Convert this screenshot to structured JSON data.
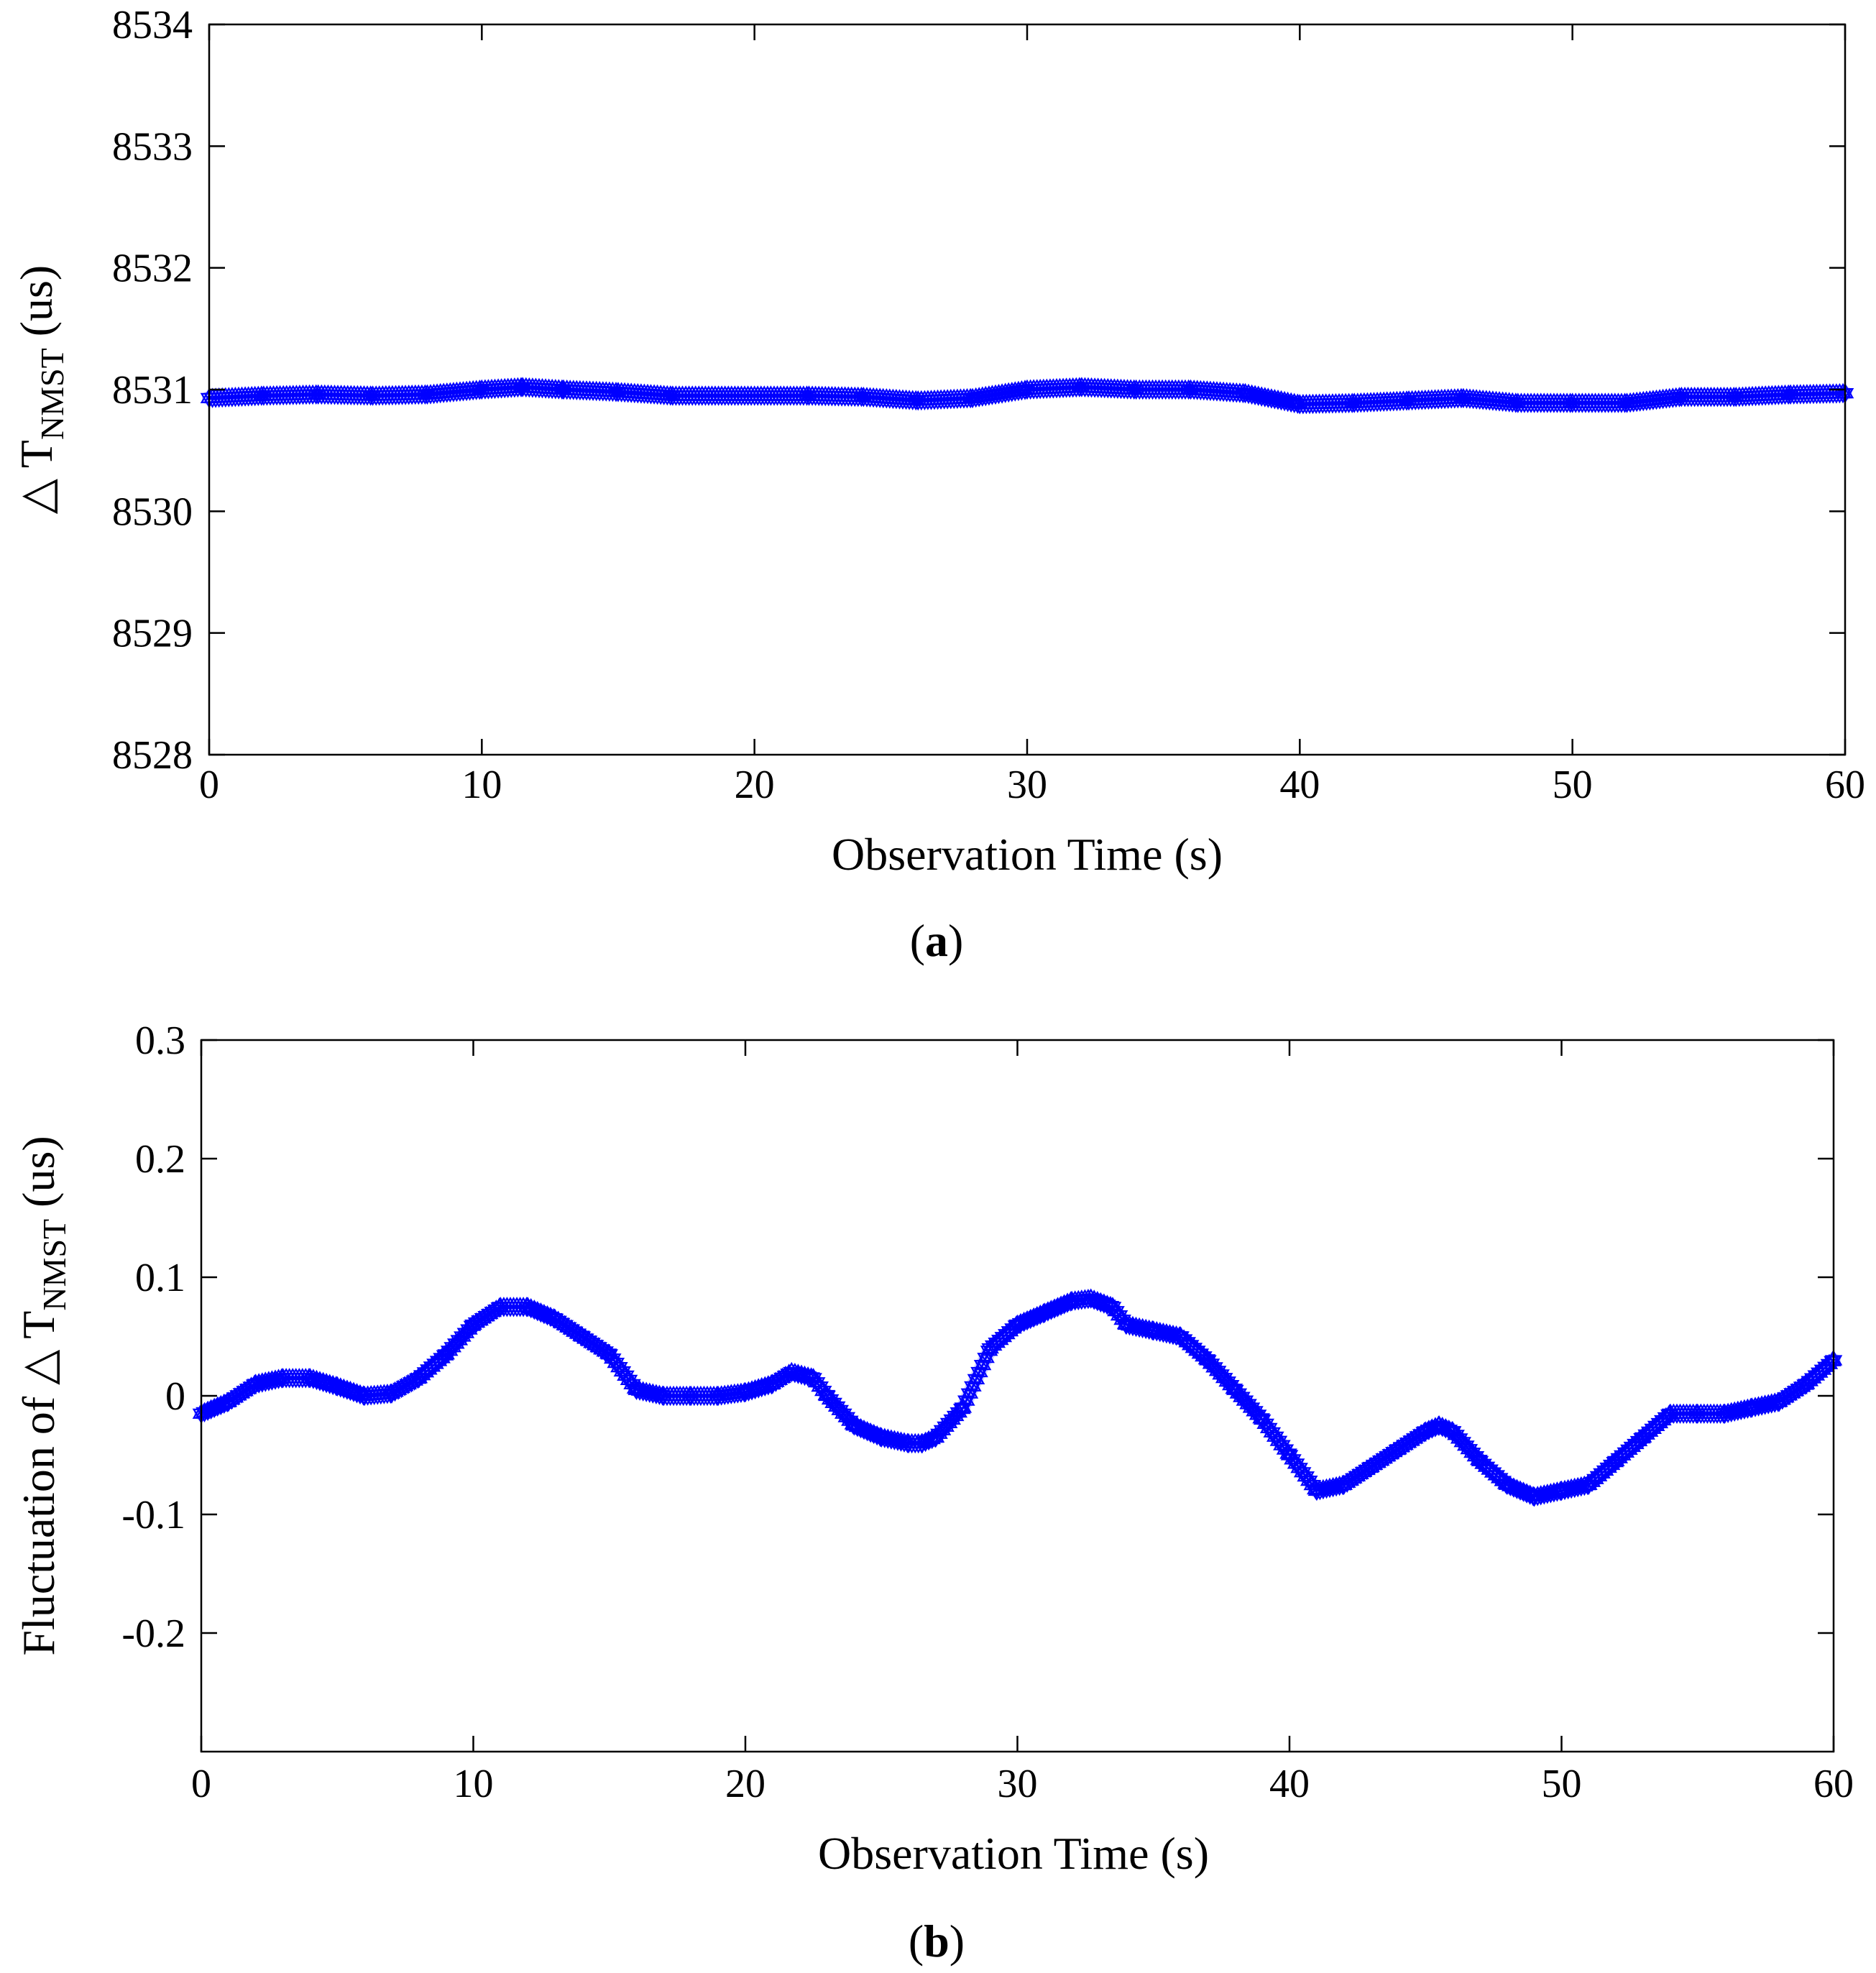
{
  "chart_data": [
    {
      "type": "line",
      "panel_label": "a",
      "xlabel": "Observation Time (s)",
      "ylabel": {
        "prefix": "△ T",
        "subscript": "NMST",
        "suffix": " (us)"
      },
      "xlim": [
        0,
        60
      ],
      "ylim": [
        8528,
        8534
      ],
      "xticks": [
        0,
        10,
        20,
        30,
        40,
        50,
        60
      ],
      "yticks": [
        8528,
        8529,
        8530,
        8531,
        8532,
        8533,
        8534
      ],
      "grid": false,
      "marker": "hexagram",
      "series": [
        {
          "name": "△ T NMST",
          "color": "#0000ff",
          "x": [
            0,
            2,
            4,
            6,
            8,
            10,
            11.5,
            13,
            15,
            17,
            20,
            22,
            24,
            26,
            28,
            30,
            32,
            34,
            36,
            38,
            40,
            42,
            44,
            46,
            48,
            50,
            52,
            54,
            56,
            58,
            60
          ],
          "y": [
            8530.93,
            8530.95,
            8530.96,
            8530.95,
            8530.96,
            8531.0,
            8531.02,
            8531.0,
            8530.98,
            8530.95,
            8530.95,
            8530.95,
            8530.94,
            8530.91,
            8530.93,
            8531.0,
            8531.02,
            8531.0,
            8531.0,
            8530.97,
            8530.88,
            8530.89,
            8530.91,
            8530.93,
            8530.89,
            8530.89,
            8530.89,
            8530.94,
            8530.94,
            8530.96,
            8530.97
          ]
        }
      ]
    },
    {
      "type": "line",
      "panel_label": "b",
      "xlabel": "Observation Time (s)",
      "ylabel": {
        "prefix": "Fluctuation of △ T",
        "subscript": "NMST",
        "suffix": "  (us)"
      },
      "xlim": [
        0,
        60
      ],
      "ylim": [
        -0.3,
        0.3
      ],
      "xticks": [
        0,
        10,
        20,
        30,
        40,
        50,
        60
      ],
      "yticks": [
        0.3,
        0.2,
        0.1,
        0,
        -0.1,
        -0.2
      ],
      "grid": false,
      "marker": "hexagram",
      "series": [
        {
          "name": "Fluctuation",
          "color": "#0000ff",
          "x": [
            0,
            1,
            2,
            3,
            4,
            5,
            6,
            7,
            8,
            9,
            10,
            11,
            12,
            13,
            14,
            15,
            16,
            17,
            18,
            19,
            20,
            21,
            21.7,
            22.5,
            23,
            24,
            25,
            26,
            26.5,
            27,
            28,
            29,
            30,
            31,
            32,
            32.7,
            33.5,
            34,
            35,
            36,
            37,
            38,
            39,
            40,
            41,
            42,
            43,
            44,
            45,
            45.5,
            46,
            47,
            48,
            49,
            50,
            51,
            52,
            53,
            54,
            55,
            56,
            57,
            58,
            59,
            60
          ],
          "y": [
            -0.015,
            -0.005,
            0.01,
            0.015,
            0.015,
            0.008,
            0.0,
            0.002,
            0.015,
            0.035,
            0.06,
            0.075,
            0.075,
            0.065,
            0.05,
            0.035,
            0.005,
            0.0,
            0.0,
            0.0,
            0.003,
            0.01,
            0.02,
            0.015,
            0.0,
            -0.025,
            -0.035,
            -0.04,
            -0.04,
            -0.035,
            -0.01,
            0.04,
            0.06,
            0.07,
            0.08,
            0.082,
            0.075,
            0.06,
            0.055,
            0.05,
            0.03,
            0.005,
            -0.02,
            -0.05,
            -0.08,
            -0.075,
            -0.06,
            -0.045,
            -0.03,
            -0.025,
            -0.03,
            -0.055,
            -0.075,
            -0.085,
            -0.08,
            -0.075,
            -0.055,
            -0.035,
            -0.015,
            -0.015,
            -0.015,
            -0.01,
            -0.005,
            0.01,
            0.03
          ]
        }
      ]
    }
  ]
}
